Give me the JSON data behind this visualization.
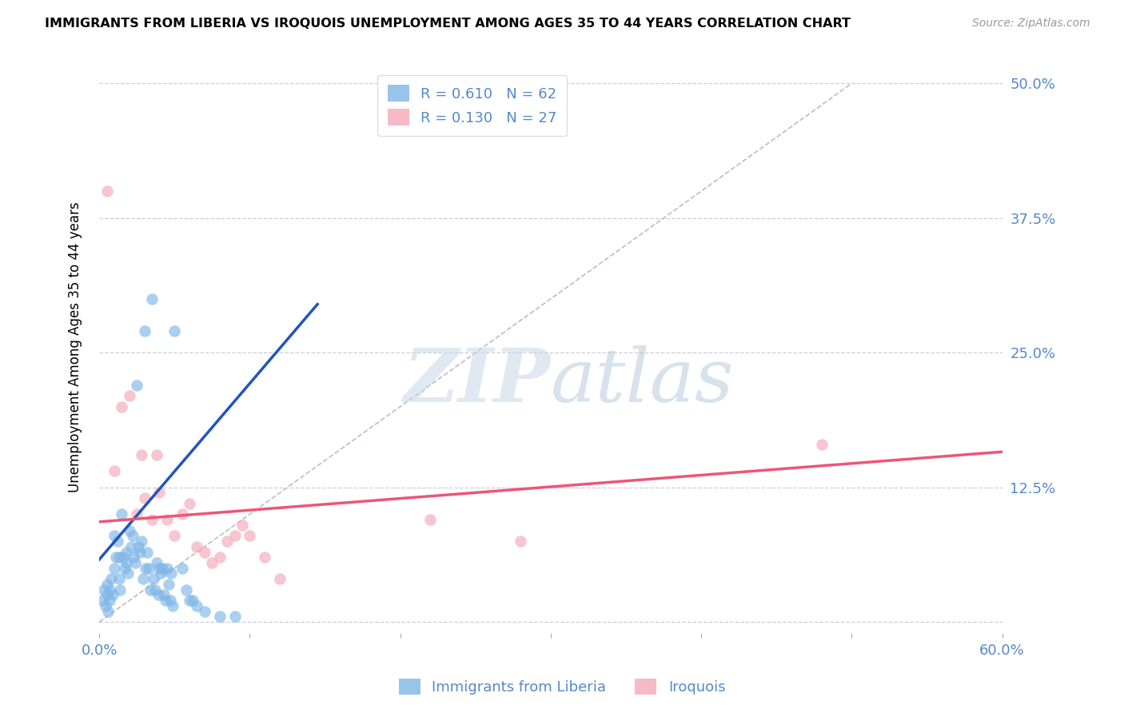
{
  "title": "IMMIGRANTS FROM LIBERIA VS IROQUOIS UNEMPLOYMENT AMONG AGES 35 TO 44 YEARS CORRELATION CHART",
  "source": "Source: ZipAtlas.com",
  "xlabel_ticks": [
    "0.0%",
    "",
    "",
    "",
    "",
    "",
    "60.0%"
  ],
  "xlabel_vals": [
    0.0,
    0.1,
    0.2,
    0.3,
    0.4,
    0.5,
    0.6
  ],
  "ylabel": "Unemployment Among Ages 35 to 44 years",
  "ylabel_ticks_right": [
    "",
    "12.5%",
    "25.0%",
    "37.5%",
    "50.0%"
  ],
  "ylabel_vals_right": [
    0.0,
    0.125,
    0.25,
    0.375,
    0.5
  ],
  "xlim": [
    0.0,
    0.6
  ],
  "ylim": [
    -0.01,
    0.52
  ],
  "blue_color": "#7EB6E8",
  "pink_color": "#F4A8B8",
  "blue_line_color": "#2255BB",
  "pink_line_color": "#EE5577",
  "diagonal_color": "#BBBBCC",
  "watermark_zip": "ZIP",
  "watermark_atlas": "atlas",
  "legend_r_blue": "R = 0.610",
  "legend_n_blue": "N = 62",
  "legend_r_pink": "R = 0.130",
  "legend_n_pink": "N = 27",
  "blue_scatter_x": [
    0.002,
    0.003,
    0.004,
    0.005,
    0.005,
    0.006,
    0.007,
    0.007,
    0.008,
    0.009,
    0.01,
    0.01,
    0.011,
    0.012,
    0.013,
    0.013,
    0.014,
    0.015,
    0.016,
    0.017,
    0.018,
    0.018,
    0.019,
    0.02,
    0.021,
    0.022,
    0.023,
    0.024,
    0.025,
    0.026,
    0.027,
    0.028,
    0.029,
    0.03,
    0.031,
    0.032,
    0.033,
    0.034,
    0.035,
    0.036,
    0.037,
    0.038,
    0.039,
    0.04,
    0.041,
    0.042,
    0.043,
    0.044,
    0.045,
    0.046,
    0.047,
    0.048,
    0.049,
    0.05,
    0.055,
    0.058,
    0.06,
    0.062,
    0.065,
    0.07,
    0.08,
    0.09
  ],
  "blue_scatter_y": [
    0.02,
    0.03,
    0.015,
    0.025,
    0.035,
    0.01,
    0.02,
    0.03,
    0.04,
    0.025,
    0.05,
    0.08,
    0.06,
    0.075,
    0.04,
    0.06,
    0.03,
    0.1,
    0.06,
    0.05,
    0.055,
    0.065,
    0.045,
    0.085,
    0.07,
    0.08,
    0.06,
    0.055,
    0.22,
    0.07,
    0.065,
    0.075,
    0.04,
    0.27,
    0.05,
    0.065,
    0.05,
    0.03,
    0.3,
    0.04,
    0.03,
    0.055,
    0.025,
    0.05,
    0.045,
    0.05,
    0.025,
    0.02,
    0.05,
    0.035,
    0.02,
    0.045,
    0.015,
    0.27,
    0.05,
    0.03,
    0.02,
    0.02,
    0.015,
    0.01,
    0.005,
    0.005
  ],
  "pink_scatter_x": [
    0.005,
    0.01,
    0.015,
    0.02,
    0.025,
    0.028,
    0.03,
    0.035,
    0.038,
    0.04,
    0.045,
    0.05,
    0.055,
    0.06,
    0.065,
    0.07,
    0.075,
    0.08,
    0.085,
    0.09,
    0.095,
    0.1,
    0.11,
    0.12,
    0.22,
    0.28,
    0.48
  ],
  "pink_scatter_y": [
    0.4,
    0.14,
    0.2,
    0.21,
    0.1,
    0.155,
    0.115,
    0.095,
    0.155,
    0.12,
    0.095,
    0.08,
    0.1,
    0.11,
    0.07,
    0.065,
    0.055,
    0.06,
    0.075,
    0.08,
    0.09,
    0.08,
    0.06,
    0.04,
    0.095,
    0.075,
    0.165
  ],
  "blue_trend_x": [
    0.0,
    0.145
  ],
  "blue_trend_y": [
    0.058,
    0.295
  ],
  "pink_trend_x": [
    0.0,
    0.6
  ],
  "pink_trend_y": [
    0.093,
    0.158
  ],
  "grid_color": "#CCCCDD",
  "title_fontsize": 11.5,
  "axis_tick_color": "#5588CC",
  "bottom_legend_label1": "Immigrants from Liberia",
  "bottom_legend_label2": "Iroquois"
}
